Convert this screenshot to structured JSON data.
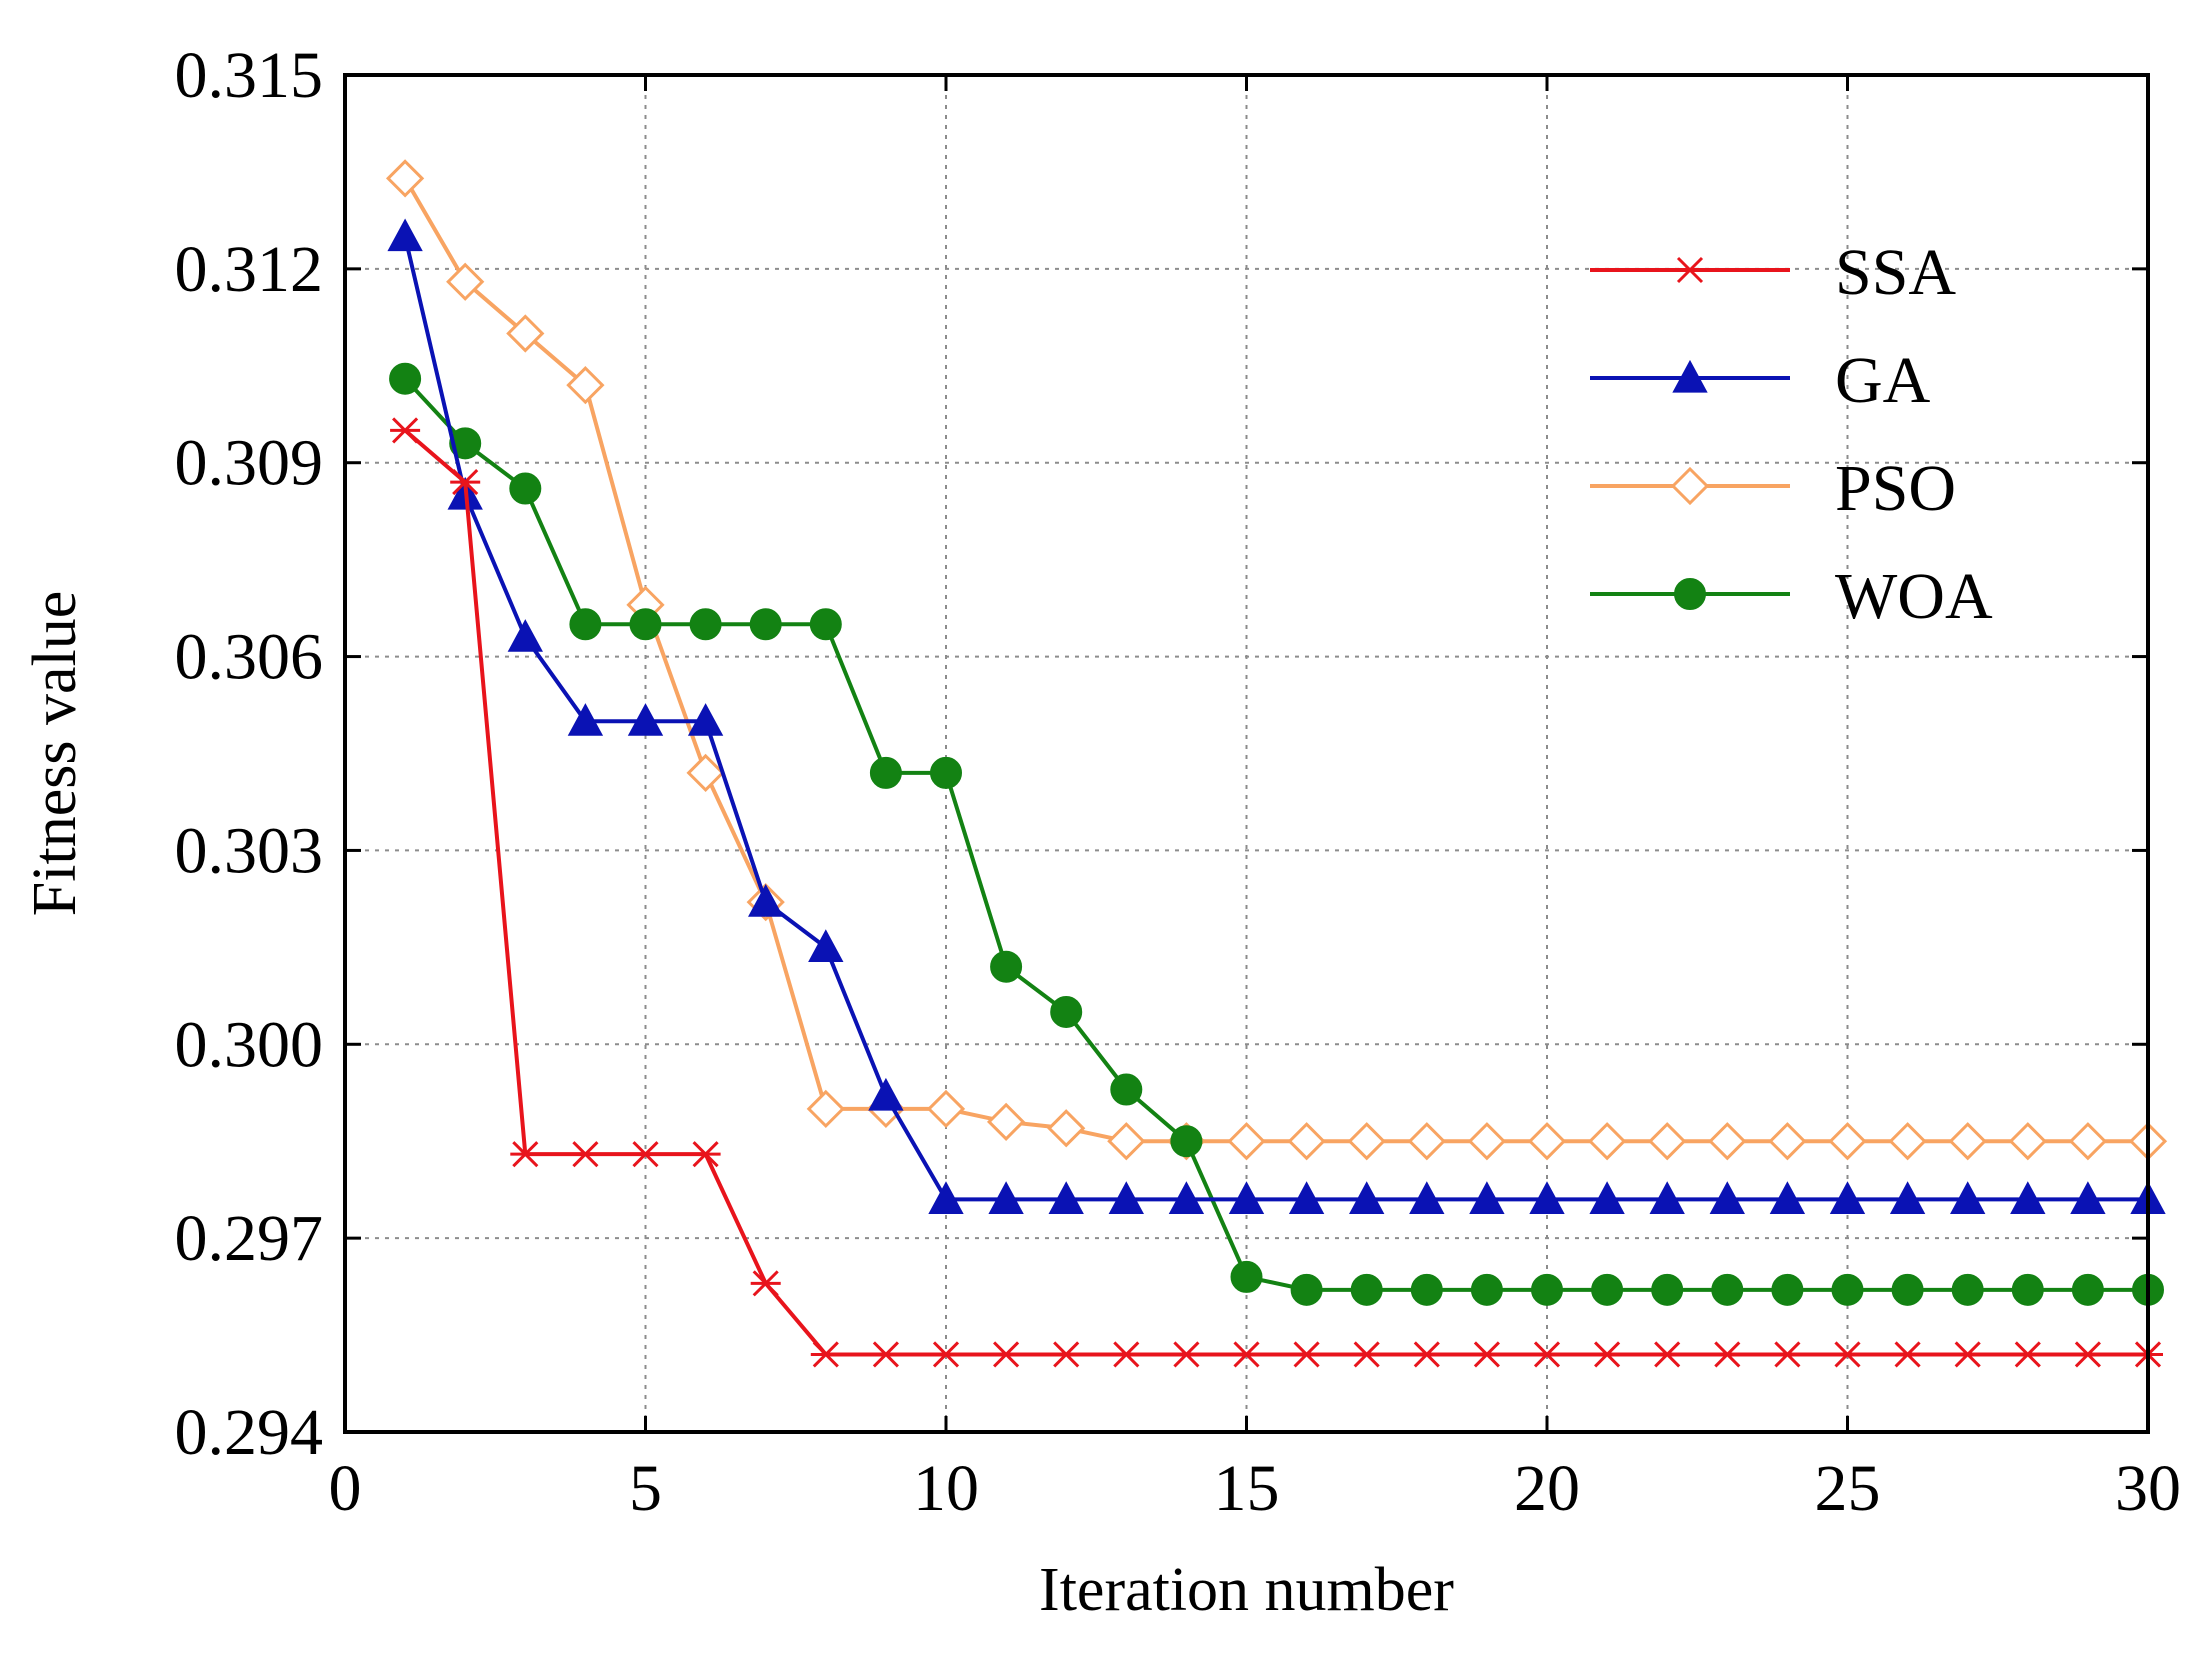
{
  "chart_data": {
    "type": "line",
    "title": "",
    "xlabel": "Iteration number",
    "ylabel": "Fitness value",
    "xlim": [
      0,
      30
    ],
    "ylim": [
      0.294,
      0.315
    ],
    "xticks": [
      0,
      5,
      10,
      15,
      20,
      25,
      30
    ],
    "xtick_labels": [
      "0",
      "5",
      "10",
      "15",
      "20",
      "25",
      "30"
    ],
    "yticks": [
      0.294,
      0.297,
      0.3,
      0.303,
      0.306,
      0.309,
      0.312,
      0.315
    ],
    "ytick_labels": [
      "0.294",
      "0.297",
      "0.300",
      "0.303",
      "0.306",
      "0.309",
      "0.312",
      "0.315"
    ],
    "grid": true,
    "legend_position": "top-right",
    "series": [
      {
        "name": "SSA",
        "color": "#e8141c",
        "marker": "asterisk",
        "x": [
          1,
          2,
          3,
          4,
          5,
          6,
          7,
          8,
          9,
          10,
          11,
          12,
          13,
          14,
          15,
          16,
          17,
          18,
          19,
          20,
          21,
          22,
          23,
          24,
          25,
          26,
          27,
          28,
          29,
          30
        ],
        "y": [
          0.3095,
          0.3087,
          0.2983,
          0.2983,
          0.2983,
          0.2983,
          0.2963,
          0.2952,
          0.2952,
          0.2952,
          0.2952,
          0.2952,
          0.2952,
          0.2952,
          0.2952,
          0.2952,
          0.2952,
          0.2952,
          0.2952,
          0.2952,
          0.2952,
          0.2952,
          0.2952,
          0.2952,
          0.2952,
          0.2952,
          0.2952,
          0.2952,
          0.2952,
          0.2952
        ]
      },
      {
        "name": "GA",
        "color": "#0a12b4",
        "marker": "triangle",
        "x": [
          1,
          2,
          3,
          4,
          5,
          6,
          7,
          8,
          9,
          10,
          11,
          12,
          13,
          14,
          15,
          16,
          17,
          18,
          19,
          20,
          21,
          22,
          23,
          24,
          25,
          26,
          27,
          28,
          29,
          30
        ],
        "y": [
          0.3125,
          0.3085,
          0.3063,
          0.305,
          0.305,
          0.305,
          0.3022,
          0.3015,
          0.2992,
          0.2976,
          0.2976,
          0.2976,
          0.2976,
          0.2976,
          0.2976,
          0.2976,
          0.2976,
          0.2976,
          0.2976,
          0.2976,
          0.2976,
          0.2976,
          0.2976,
          0.2976,
          0.2976,
          0.2976,
          0.2976,
          0.2976,
          0.2976,
          0.2976
        ]
      },
      {
        "name": "PSO",
        "color": "#f8a462",
        "marker": "diamond",
        "x": [
          1,
          2,
          3,
          4,
          5,
          6,
          7,
          8,
          9,
          10,
          11,
          12,
          13,
          14,
          15,
          16,
          17,
          18,
          19,
          20,
          21,
          22,
          23,
          24,
          25,
          26,
          27,
          28,
          29,
          30
        ],
        "y": [
          0.3134,
          0.3118,
          0.311,
          0.3102,
          0.3068,
          0.3042,
          0.3022,
          0.299,
          0.299,
          0.299,
          0.2988,
          0.2987,
          0.2985,
          0.2985,
          0.2985,
          0.2985,
          0.2985,
          0.2985,
          0.2985,
          0.2985,
          0.2985,
          0.2985,
          0.2985,
          0.2985,
          0.2985,
          0.2985,
          0.2985,
          0.2985,
          0.2985,
          0.2985
        ]
      },
      {
        "name": "WOA",
        "color": "#138213",
        "marker": "circle",
        "x": [
          1,
          2,
          3,
          4,
          5,
          6,
          7,
          8,
          9,
          10,
          11,
          12,
          13,
          14,
          15,
          16,
          17,
          18,
          19,
          20,
          21,
          22,
          23,
          24,
          25,
          26,
          27,
          28,
          29,
          30
        ],
        "y": [
          0.3103,
          0.3093,
          0.3086,
          0.3065,
          0.3065,
          0.3065,
          0.3065,
          0.3065,
          0.3042,
          0.3042,
          0.3012,
          0.3005,
          0.2993,
          0.2985,
          0.2964,
          0.2962,
          0.2962,
          0.2962,
          0.2962,
          0.2962,
          0.2962,
          0.2962,
          0.2962,
          0.2962,
          0.2962,
          0.2962,
          0.2962,
          0.2962,
          0.2962,
          0.2962
        ]
      }
    ]
  }
}
